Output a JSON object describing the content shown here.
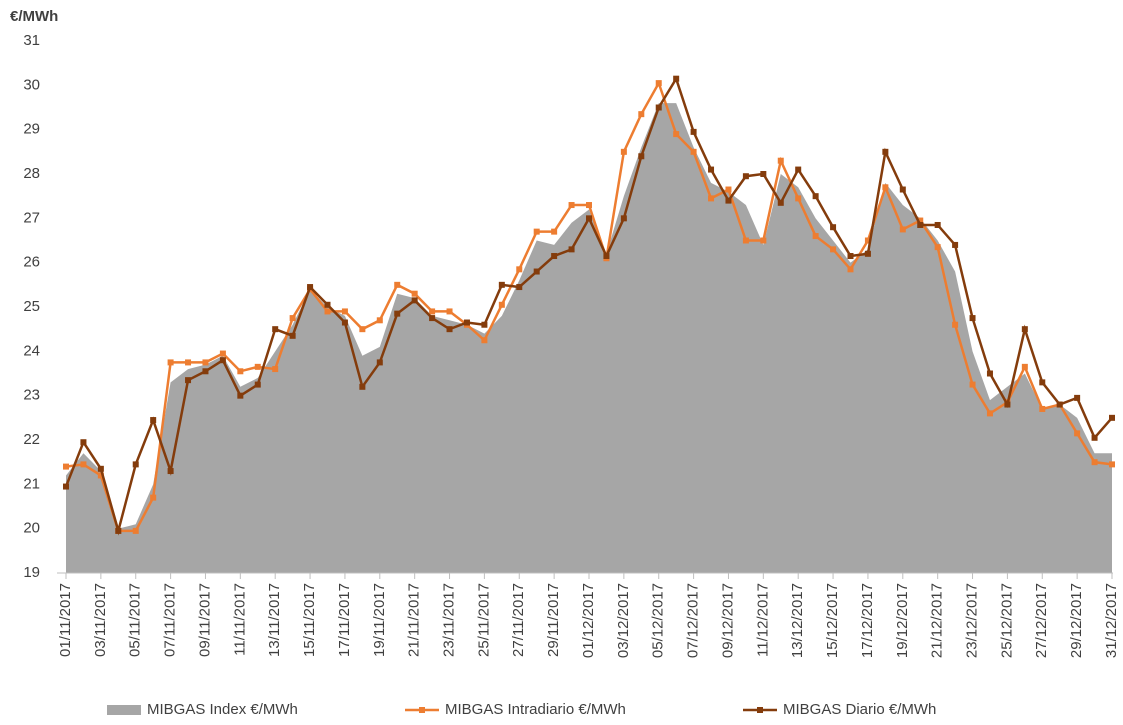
{
  "chart_data": {
    "type": "line",
    "y_label": "€/MWh",
    "categories": [
      "01/11/2017",
      null,
      "03/11/2017",
      null,
      "05/11/2017",
      null,
      "07/11/2017",
      null,
      "09/11/2017",
      null,
      "11/11/2017",
      null,
      "13/11/2017",
      null,
      "15/11/2017",
      null,
      "17/11/2017",
      null,
      "19/11/2017",
      null,
      "21/11/2017",
      null,
      "23/11/2017",
      null,
      "25/11/2017",
      null,
      "27/11/2017",
      null,
      "29/11/2017",
      null,
      "01/12/2017",
      null,
      "03/12/2017",
      null,
      "05/12/2017",
      null,
      "07/12/2017",
      null,
      "09/12/2017",
      null,
      "11/12/2017",
      null,
      "13/12/2017",
      null,
      "15/12/2017",
      null,
      "17/12/2017",
      null,
      "19/12/2017",
      null,
      "21/12/2017",
      null,
      "23/12/2017",
      null,
      "25/12/2017",
      null,
      "27/12/2017",
      null,
      "29/12/2017",
      null,
      "31/12/2017"
    ],
    "series": [
      {
        "name": "MIBGAS Index €/MWh",
        "color": "#a6a6a6",
        "style": "area",
        "values": [
          21.2,
          21.7,
          21.3,
          20.0,
          20.1,
          21.0,
          23.3,
          23.6,
          23.7,
          23.9,
          23.2,
          23.4,
          24.0,
          24.6,
          25.4,
          25.0,
          24.8,
          23.9,
          24.1,
          25.3,
          25.2,
          24.8,
          24.7,
          24.6,
          24.4,
          24.8,
          25.6,
          26.5,
          26.4,
          26.9,
          27.2,
          26.2,
          27.5,
          28.6,
          29.6,
          29.6,
          28.6,
          27.8,
          27.6,
          27.3,
          26.4,
          28.0,
          27.7,
          27.0,
          26.5,
          26.0,
          26.3,
          27.8,
          27.3,
          27.0,
          26.5,
          25.8,
          24.0,
          22.9,
          23.2,
          23.5,
          22.7,
          22.8,
          22.5,
          21.7,
          21.7
        ]
      },
      {
        "name": "MIBGAS Intradiario €/MWh",
        "color": "#ed7d31",
        "style": "line",
        "values": [
          21.4,
          21.45,
          21.2,
          19.95,
          19.95,
          20.7,
          23.75,
          23.75,
          23.75,
          23.95,
          23.55,
          23.65,
          23.6,
          24.75,
          25.4,
          24.9,
          24.9,
          24.5,
          24.7,
          25.5,
          25.3,
          24.9,
          24.9,
          24.6,
          24.25,
          25.05,
          25.85,
          26.7,
          26.7,
          27.3,
          27.3,
          26.1,
          28.5,
          29.35,
          30.05,
          28.9,
          28.5,
          27.45,
          27.65,
          26.5,
          26.5,
          28.3,
          27.45,
          26.6,
          26.3,
          25.85,
          26.5,
          27.7,
          26.75,
          26.95,
          26.35,
          24.6,
          23.25,
          22.6,
          22.85,
          23.65,
          22.7,
          22.8,
          22.15,
          21.5,
          21.45
        ]
      },
      {
        "name": "MIBGAS Diario €/MWh",
        "color": "#843c0c",
        "style": "line",
        "values": [
          20.95,
          21.95,
          21.35,
          19.95,
          21.45,
          22.45,
          21.3,
          23.35,
          23.55,
          23.8,
          23.0,
          23.25,
          24.5,
          24.35,
          25.45,
          25.05,
          24.65,
          23.2,
          23.75,
          24.85,
          25.15,
          24.75,
          24.5,
          24.65,
          24.6,
          25.5,
          25.45,
          25.8,
          26.15,
          26.3,
          27.0,
          26.15,
          27.0,
          28.4,
          29.5,
          30.15,
          28.95,
          28.1,
          27.4,
          27.95,
          28.0,
          27.35,
          28.1,
          27.5,
          26.8,
          26.15,
          26.2,
          28.5,
          27.65,
          26.85,
          26.85,
          26.4,
          24.75,
          23.5,
          22.8,
          24.5,
          23.3,
          22.8,
          22.95,
          22.05,
          22.5
        ]
      }
    ],
    "ylim": [
      19,
      31
    ],
    "yticks": [
      19,
      20,
      21,
      22,
      23,
      24,
      25,
      26,
      27,
      28,
      29,
      30,
      31
    ],
    "grid": false,
    "legend": "bottom"
  }
}
